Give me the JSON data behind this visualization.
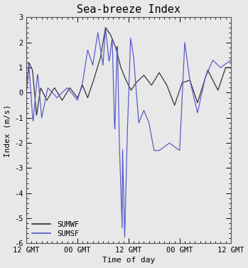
{
  "title": "Sea-breeze Index",
  "xlabel": "Time of day",
  "ylabel": "Index (m/s)",
  "ylim": [
    -6,
    3
  ],
  "yticks": [
    -6,
    -5,
    -4,
    -3,
    -2,
    -1,
    0,
    1,
    2,
    3
  ],
  "xtick_labels": [
    "12 GMT",
    "00 GMT",
    "12 GMT",
    "00 GMT",
    "12 GMT"
  ],
  "bg_color": "#e8e8e8",
  "line_color_black": "#2b2b2b",
  "line_color_blue": "#5555cc",
  "legend_labels": [
    "SUMWF",
    "SUMSF"
  ],
  "title_fontsize": 11,
  "label_fontsize": 8,
  "tick_fontsize": 7.5
}
